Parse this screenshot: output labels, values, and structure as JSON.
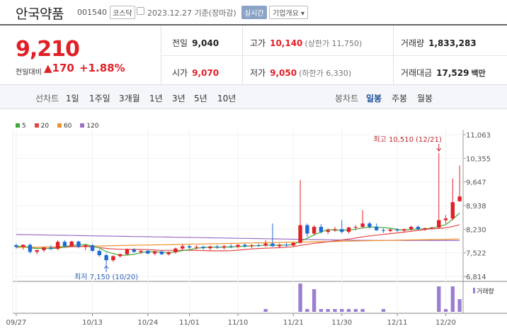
{
  "header": {
    "name": "안국약품",
    "code": "001540",
    "market": "코스닥",
    "date": "2023.12.27 기준(장마감)",
    "realtime": "실시간",
    "overview": "기업개요"
  },
  "quote": {
    "price": "9,210",
    "change_label": "전일대비",
    "change": "▲170",
    "change_pct": "+1.88%"
  },
  "stats": {
    "prev_close_label": "전일",
    "prev_close": "9,040",
    "high_label": "고가",
    "high": "10,140",
    "high_sub": "(상한가 11,750)",
    "volume_label": "거래량",
    "volume": "1,833,283",
    "open_label": "시가",
    "open": "9,070",
    "low_label": "저가",
    "low": "9,050",
    "low_sub": "(하한가 6,330)",
    "amount_label": "거래대금",
    "amount": "17,529",
    "amount_unit": "백만"
  },
  "period_bar": {
    "line_label": "선차트",
    "line_options": [
      "1일",
      "1주일",
      "3개월",
      "1년",
      "3년",
      "5년",
      "10년"
    ],
    "candle_label": "봉차트",
    "candle_options": [
      "일봉",
      "주봉",
      "월봉"
    ],
    "active_candle": "일봉"
  },
  "legend": [
    {
      "label": "5",
      "color": "#3aaa35"
    },
    {
      "label": "20",
      "color": "#e64545"
    },
    {
      "label": "60",
      "color": "#f0922b"
    },
    {
      "label": "120",
      "color": "#9b6fc6"
    }
  ],
  "annotations": {
    "high": "최고 10,510 (12/21)",
    "low": "최저 7,150 (10/20)"
  },
  "volume_label": "거래량",
  "chart_data": {
    "type": "candlestick",
    "y_ticks": [
      "11,063",
      "10,355",
      "9,647",
      "8,938",
      "8,230",
      "7,522",
      "6,814"
    ],
    "ylim": [
      6814,
      11063
    ],
    "x_ticks": [
      "09/27",
      "10/13",
      "10/24",
      "11/01",
      "11/10",
      "11/21",
      "11/30",
      "12/11",
      "12/20"
    ],
    "candles": [
      {
        "o": 7750,
        "h": 7800,
        "l": 7650,
        "c": 7700
      },
      {
        "o": 7700,
        "h": 7780,
        "l": 7620,
        "c": 7760
      },
      {
        "o": 7760,
        "h": 7800,
        "l": 7500,
        "c": 7550
      },
      {
        "o": 7550,
        "h": 7620,
        "l": 7480,
        "c": 7600
      },
      {
        "o": 7600,
        "h": 7700,
        "l": 7550,
        "c": 7680
      },
      {
        "o": 7680,
        "h": 7750,
        "l": 7600,
        "c": 7640
      },
      {
        "o": 7640,
        "h": 7900,
        "l": 7600,
        "c": 7850
      },
      {
        "o": 7850,
        "h": 7900,
        "l": 7700,
        "c": 7720
      },
      {
        "o": 7720,
        "h": 7880,
        "l": 7700,
        "c": 7860
      },
      {
        "o": 7860,
        "h": 7880,
        "l": 7660,
        "c": 7700
      },
      {
        "o": 7700,
        "h": 7780,
        "l": 7600,
        "c": 7750
      },
      {
        "o": 7750,
        "h": 7780,
        "l": 7550,
        "c": 7580
      },
      {
        "o": 7580,
        "h": 7620,
        "l": 7400,
        "c": 7450
      },
      {
        "o": 7450,
        "h": 7500,
        "l": 7150,
        "c": 7300
      },
      {
        "o": 7300,
        "h": 7450,
        "l": 7250,
        "c": 7420
      },
      {
        "o": 7420,
        "h": 7500,
        "l": 7380,
        "c": 7480
      },
      {
        "o": 7480,
        "h": 7650,
        "l": 7450,
        "c": 7620
      },
      {
        "o": 7620,
        "h": 7660,
        "l": 7520,
        "c": 7550
      },
      {
        "o": 7550,
        "h": 7600,
        "l": 7480,
        "c": 7580
      },
      {
        "o": 7580,
        "h": 7620,
        "l": 7480,
        "c": 7500
      },
      {
        "o": 7500,
        "h": 7580,
        "l": 7450,
        "c": 7560
      },
      {
        "o": 7560,
        "h": 7600,
        "l": 7460,
        "c": 7480
      },
      {
        "o": 7480,
        "h": 7560,
        "l": 7440,
        "c": 7540
      },
      {
        "o": 7540,
        "h": 7680,
        "l": 7500,
        "c": 7650
      },
      {
        "o": 7650,
        "h": 7780,
        "l": 7600,
        "c": 7720
      },
      {
        "o": 7720,
        "h": 7760,
        "l": 7640,
        "c": 7680
      },
      {
        "o": 7680,
        "h": 7750,
        "l": 7620,
        "c": 7700
      },
      {
        "o": 7700,
        "h": 7740,
        "l": 7620,
        "c": 7660
      },
      {
        "o": 7660,
        "h": 7740,
        "l": 7600,
        "c": 7710
      },
      {
        "o": 7710,
        "h": 7760,
        "l": 7640,
        "c": 7680
      },
      {
        "o": 7680,
        "h": 7750,
        "l": 7620,
        "c": 7720
      },
      {
        "o": 7720,
        "h": 7780,
        "l": 7660,
        "c": 7700
      },
      {
        "o": 7700,
        "h": 7780,
        "l": 7650,
        "c": 7760
      },
      {
        "o": 7760,
        "h": 7800,
        "l": 7680,
        "c": 7720
      },
      {
        "o": 7720,
        "h": 7780,
        "l": 7660,
        "c": 7750
      },
      {
        "o": 7750,
        "h": 7800,
        "l": 7700,
        "c": 7740
      },
      {
        "o": 7740,
        "h": 7900,
        "l": 7700,
        "c": 7800
      },
      {
        "o": 7800,
        "h": 8400,
        "l": 7700,
        "c": 7720
      },
      {
        "o": 7720,
        "h": 7800,
        "l": 7660,
        "c": 7760
      },
      {
        "o": 7760,
        "h": 7820,
        "l": 7700,
        "c": 7740
      },
      {
        "o": 7740,
        "h": 7850,
        "l": 7720,
        "c": 7820
      },
      {
        "o": 7820,
        "h": 9700,
        "l": 7800,
        "c": 8350
      },
      {
        "o": 8350,
        "h": 8400,
        "l": 8000,
        "c": 8100
      },
      {
        "o": 8100,
        "h": 8350,
        "l": 8050,
        "c": 8300
      },
      {
        "o": 8300,
        "h": 8380,
        "l": 8100,
        "c": 8150
      },
      {
        "o": 8150,
        "h": 8250,
        "l": 8080,
        "c": 8200
      },
      {
        "o": 8200,
        "h": 8300,
        "l": 8150,
        "c": 8230
      },
      {
        "o": 8230,
        "h": 8500,
        "l": 8100,
        "c": 8150
      },
      {
        "o": 8150,
        "h": 8300,
        "l": 8100,
        "c": 8280
      },
      {
        "o": 8280,
        "h": 8350,
        "l": 8200,
        "c": 8300
      },
      {
        "o": 8300,
        "h": 8800,
        "l": 8250,
        "c": 8400
      },
      {
        "o": 8400,
        "h": 8450,
        "l": 8250,
        "c": 8300
      },
      {
        "o": 8300,
        "h": 8400,
        "l": 8180,
        "c": 8200
      },
      {
        "o": 8200,
        "h": 8260,
        "l": 8120,
        "c": 8180
      },
      {
        "o": 8180,
        "h": 8240,
        "l": 8130,
        "c": 8220
      },
      {
        "o": 8220,
        "h": 8260,
        "l": 8150,
        "c": 8190
      },
      {
        "o": 8190,
        "h": 8240,
        "l": 8150,
        "c": 8230
      },
      {
        "o": 8230,
        "h": 8330,
        "l": 8180,
        "c": 8300
      },
      {
        "o": 8300,
        "h": 8340,
        "l": 8200,
        "c": 8230
      },
      {
        "o": 8230,
        "h": 8280,
        "l": 8180,
        "c": 8260
      },
      {
        "o": 8260,
        "h": 8300,
        "l": 8220,
        "c": 8280
      },
      {
        "o": 8280,
        "h": 10510,
        "l": 8250,
        "c": 8500
      },
      {
        "o": 8500,
        "h": 8650,
        "l": 8400,
        "c": 8550
      },
      {
        "o": 8550,
        "h": 9750,
        "l": 8500,
        "c": 9040
      },
      {
        "o": 9070,
        "h": 10140,
        "l": 9050,
        "c": 9210
      }
    ],
    "volume_bars": [
      {
        "index": 36,
        "height": 0.1
      },
      {
        "index": 41,
        "height": 1.0
      },
      {
        "index": 42,
        "height": 0.1
      },
      {
        "index": 43,
        "height": 0.8
      },
      {
        "index": 44,
        "height": 0.1
      },
      {
        "index": 45,
        "height": 0.1
      },
      {
        "index": 46,
        "height": 0.1
      },
      {
        "index": 47,
        "height": 0.1
      },
      {
        "index": 48,
        "height": 0.1
      },
      {
        "index": 49,
        "height": 0.1
      },
      {
        "index": 50,
        "height": 0.1
      },
      {
        "index": 53,
        "height": 0.1
      },
      {
        "index": 61,
        "height": 0.9
      },
      {
        "index": 62,
        "height": 0.1
      },
      {
        "index": 63,
        "height": 0.9
      },
      {
        "index": 64,
        "height": 0.45
      }
    ],
    "ma_legend": [
      "5",
      "20",
      "60",
      "120"
    ]
  }
}
